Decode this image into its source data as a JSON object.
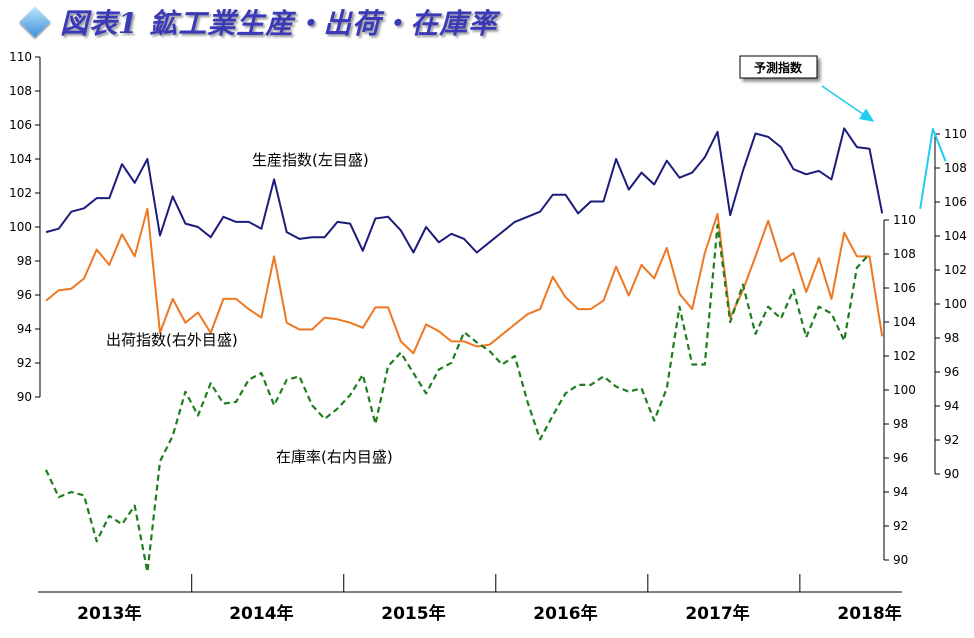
{
  "title": "図表1 鉱工業生産・出荷・在庫率",
  "chart_data": {
    "type": "line",
    "title": "図表1 鉱工業生産・出荷・在庫率",
    "x_labels": [
      "2013年",
      "2014年",
      "2015年",
      "2016年",
      "2017年",
      "2018年"
    ],
    "axes": {
      "left": {
        "ticks": [
          90,
          92,
          94,
          96,
          98,
          100,
          102,
          104,
          106,
          108,
          110
        ],
        "range": [
          90,
          110
        ]
      },
      "right_outer": {
        "ticks": [
          90,
          92,
          94,
          96,
          98,
          100,
          102,
          104,
          106,
          108,
          110
        ],
        "range": [
          90,
          110
        ]
      },
      "right_inner": {
        "ticks": [
          90,
          92,
          94,
          96,
          98,
          100,
          102,
          104,
          106,
          108,
          110
        ],
        "range": [
          90,
          110
        ]
      }
    },
    "labels": {
      "production": "生産指数(左目盛)",
      "shipments": "出荷指数(右外目盛)",
      "inventory": "在庫率(右内目盛)",
      "forecast": "予測指数"
    },
    "series": [
      {
        "name": "生産指数(左目盛)",
        "axis": "left",
        "color": "#1c1c7c",
        "dash": false,
        "start": "2013-01",
        "values": [
          99.7,
          99.9,
          100.9,
          101.1,
          101.7,
          101.7,
          103.7,
          102.6,
          104.0,
          99.5,
          101.8,
          100.2,
          100.0,
          99.4,
          100.6,
          100.3,
          100.3,
          99.9,
          102.8,
          99.7,
          99.3,
          99.4,
          99.4,
          100.3,
          100.2,
          98.6,
          100.5,
          100.6,
          99.8,
          98.5,
          100.0,
          99.1,
          99.6,
          99.3,
          98.5,
          99.1,
          99.7,
          100.3,
          100.6,
          100.9,
          101.9,
          101.9,
          100.8,
          101.5,
          101.5,
          104.0,
          102.2,
          103.2,
          102.5,
          103.9,
          102.9,
          103.2,
          104.1,
          105.6,
          100.7,
          103.3,
          105.5,
          105.3,
          104.7,
          103.4,
          103.1,
          103.3,
          102.8,
          105.8,
          104.7,
          104.6,
          100.8
        ]
      },
      {
        "name": "出荷指数(右外目盛)",
        "axis": "right_outer",
        "color": "#ee7722",
        "dash": false,
        "start": "2013-01",
        "values": [
          100.2,
          100.8,
          100.9,
          101.5,
          103.2,
          102.3,
          104.1,
          102.8,
          105.6,
          98.3,
          100.3,
          98.9,
          99.5,
          98.3,
          100.3,
          100.3,
          99.7,
          99.2,
          102.8,
          98.9,
          98.5,
          98.5,
          99.2,
          99.1,
          98.9,
          98.6,
          99.8,
          99.8,
          97.8,
          97.1,
          98.8,
          98.4,
          97.8,
          97.8,
          97.5,
          97.6,
          98.2,
          98.8,
          99.4,
          99.7,
          101.6,
          100.4,
          99.7,
          99.7,
          100.2,
          102.2,
          100.5,
          102.3,
          101.5,
          103.3,
          100.6,
          99.7,
          103.0,
          105.3,
          99.2,
          100.8,
          102.8,
          104.9,
          102.5,
          103.0,
          100.7,
          102.7,
          100.3,
          104.2,
          102.8,
          102.8,
          98.1
        ]
      },
      {
        "name": "在庫率(右内目盛)",
        "axis": "right_inner",
        "color": "#1e7e1e",
        "dash": true,
        "start": "2013-01",
        "values": [
          95.3,
          93.7,
          94.0,
          93.8,
          91.1,
          92.6,
          92.1,
          93.2,
          89.3,
          95.8,
          97.3,
          99.9,
          98.5,
          100.4,
          99.2,
          99.3,
          100.6,
          101.0,
          99.1,
          100.6,
          100.8,
          99.1,
          98.3,
          98.9,
          99.7,
          100.9,
          98.0,
          101.4,
          102.2,
          101.0,
          99.8,
          101.2,
          101.6,
          103.4,
          102.8,
          102.3,
          101.5,
          102.0,
          99.3,
          97.1,
          98.5,
          99.8,
          100.3,
          100.3,
          100.8,
          100.2,
          99.9,
          100.1,
          98.2,
          100.1,
          104.9,
          101.5,
          101.5,
          109.7,
          104.0,
          106.2,
          103.3,
          104.9,
          104.2,
          105.9,
          103.1,
          104.9,
          104.5,
          102.9,
          107.2,
          108.0
        ]
      },
      {
        "name": "予測指数",
        "axis": "right_outer",
        "color": "#22ccee",
        "dash": false,
        "start": "2018-10",
        "values": [
          105.6,
          110.3,
          108.4
        ]
      }
    ]
  }
}
